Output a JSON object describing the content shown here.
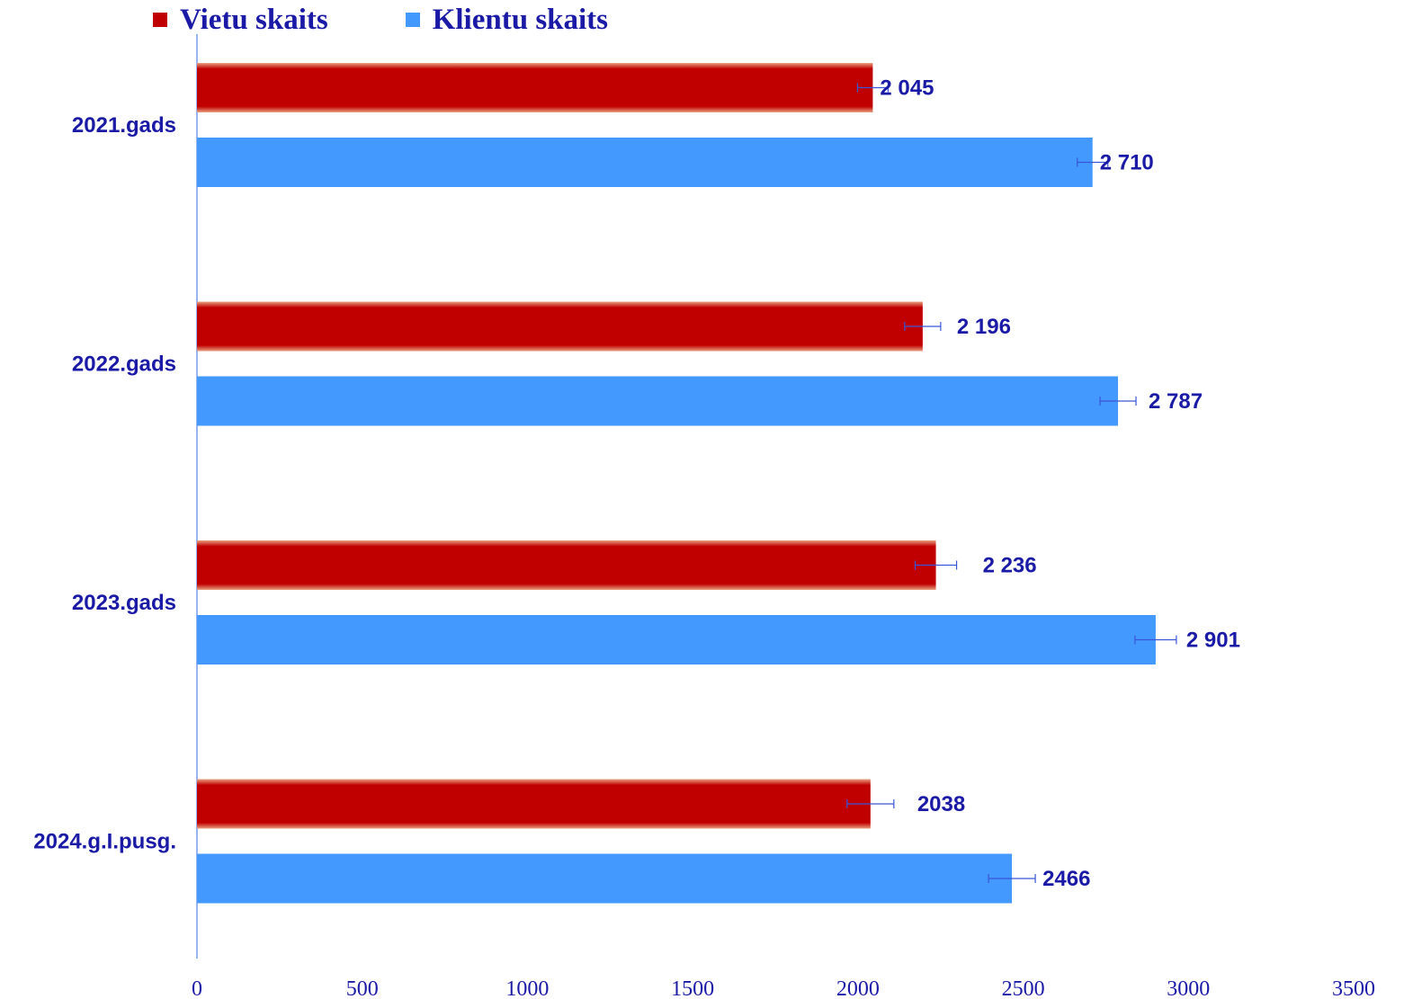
{
  "chart_data": {
    "type": "bar",
    "orientation": "horizontal",
    "categories": [
      "2021.gads",
      "2022.gads",
      "2023.gads",
      "2024.g.I.pusg."
    ],
    "series": [
      {
        "name": "Vietu skaits",
        "color": "#c00000",
        "values": [
          2045,
          2196,
          2236,
          2038
        ],
        "value_labels": [
          "2 045",
          "2 196",
          "2 236",
          "2038"
        ]
      },
      {
        "name": "Klientu skaits",
        "color": "#4499ff",
        "values": [
          2710,
          2787,
          2901,
          2466
        ],
        "value_labels": [
          "2 710",
          "2 787",
          "2 901",
          "2466"
        ]
      }
    ],
    "xlim": [
      0,
      3500
    ],
    "x_ticks": [
      "0",
      "500",
      "1000",
      "1500",
      "2000",
      "2500",
      "3000",
      "3500"
    ],
    "legend_position": "top-left",
    "grid": false,
    "error_bars": true,
    "axis_color": "#7799ee",
    "text_color": "#1a1aa6"
  }
}
